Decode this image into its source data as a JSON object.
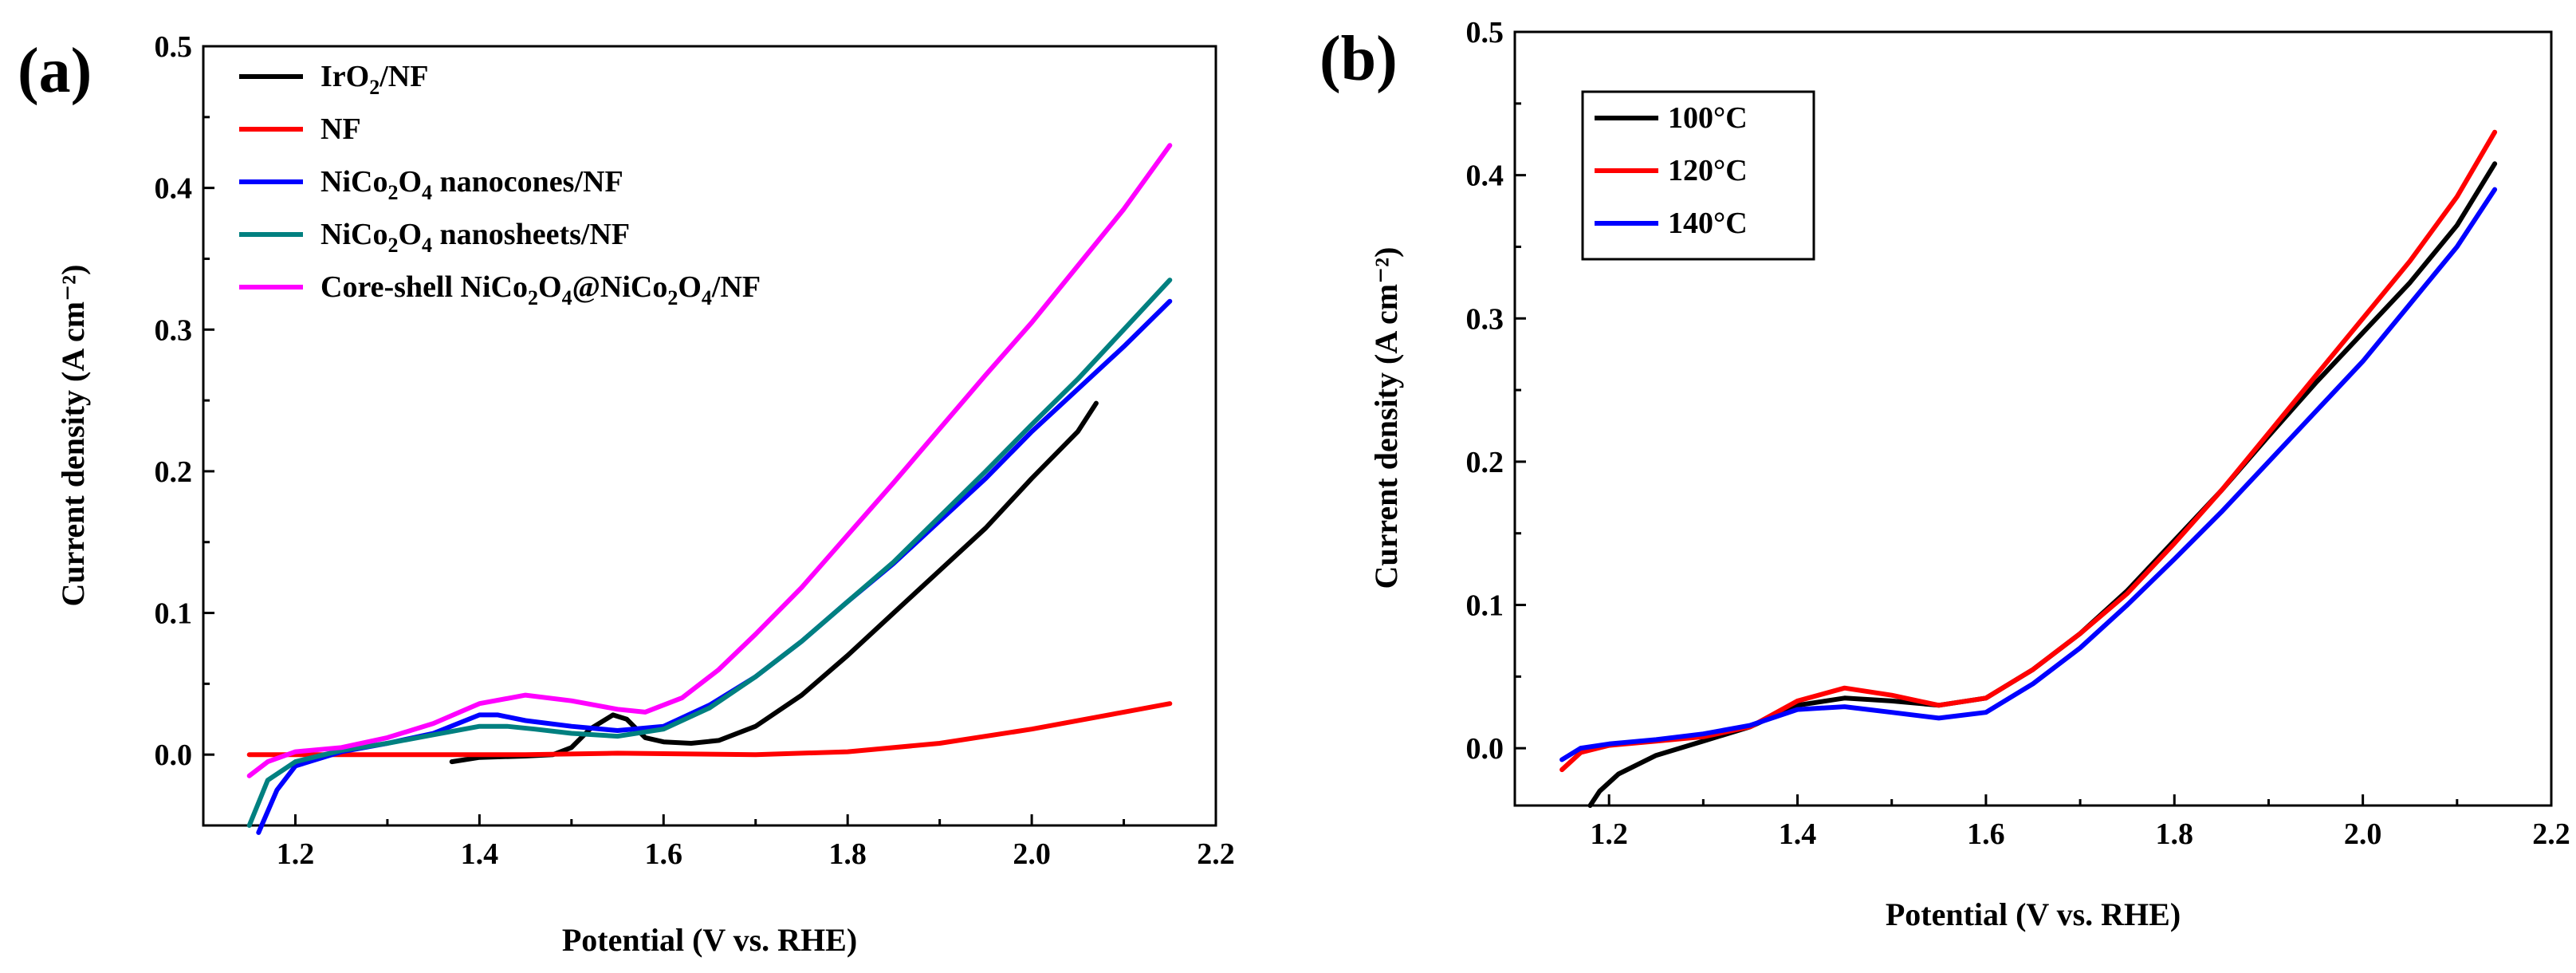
{
  "chart_data": [
    {
      "type": "line",
      "panel_label": "(a)",
      "xlabel": "Potential (V vs. RHE)",
      "ylabel": "Current density (A cm⁻²)",
      "xlim": [
        1.1,
        2.2
      ],
      "ylim": [
        -0.05,
        0.5
      ],
      "xticks": [
        "1.2",
        "1.4",
        "1.6",
        "1.8",
        "2.0",
        "2.2"
      ],
      "yticks": [
        "0.0",
        "0.1",
        "0.2",
        "0.3",
        "0.4",
        "0.5"
      ],
      "legend_position": "top-left",
      "series": [
        {
          "name": "IrO2/NF",
          "legend": {
            "base": "IrO",
            "sub": "2",
            "rest": "/NF"
          },
          "color": "#000000",
          "points": [
            [
              1.37,
              -0.005
            ],
            [
              1.4,
              -0.002
            ],
            [
              1.45,
              -0.001
            ],
            [
              1.48,
              0.0
            ],
            [
              1.5,
              0.005
            ],
            [
              1.52,
              0.018
            ],
            [
              1.545,
              0.028
            ],
            [
              1.56,
              0.025
            ],
            [
              1.58,
              0.012
            ],
            [
              1.6,
              0.009
            ],
            [
              1.63,
              0.008
            ],
            [
              1.66,
              0.01
            ],
            [
              1.7,
              0.02
            ],
            [
              1.75,
              0.042
            ],
            [
              1.8,
              0.07
            ],
            [
              1.85,
              0.1
            ],
            [
              1.9,
              0.13
            ],
            [
              1.95,
              0.16
            ],
            [
              2.0,
              0.195
            ],
            [
              2.05,
              0.228
            ],
            [
              2.07,
              0.248
            ]
          ]
        },
        {
          "name": "NF",
          "legend": {
            "base": "NF",
            "sub": "",
            "rest": ""
          },
          "color": "#ff0000",
          "points": [
            [
              1.15,
              0.0
            ],
            [
              1.3,
              0.0
            ],
            [
              1.45,
              0.0
            ],
            [
              1.55,
              0.001
            ],
            [
              1.7,
              0.0
            ],
            [
              1.8,
              0.002
            ],
            [
              1.9,
              0.008
            ],
            [
              2.0,
              0.018
            ],
            [
              2.1,
              0.03
            ],
            [
              2.15,
              0.036
            ]
          ]
        },
        {
          "name": "NiCo2O4 nanocones/NF",
          "legend": {
            "base": "NiCo",
            "sub": "2",
            "mid": "O",
            "sub2": "4",
            "rest": " nanocones/NF"
          },
          "color": "#0000ff",
          "points": [
            [
              1.16,
              -0.055
            ],
            [
              1.18,
              -0.025
            ],
            [
              1.2,
              -0.008
            ],
            [
              1.25,
              0.002
            ],
            [
              1.3,
              0.008
            ],
            [
              1.35,
              0.015
            ],
            [
              1.4,
              0.028
            ],
            [
              1.42,
              0.028
            ],
            [
              1.45,
              0.024
            ],
            [
              1.5,
              0.02
            ],
            [
              1.55,
              0.017
            ],
            [
              1.6,
              0.02
            ],
            [
              1.65,
              0.035
            ],
            [
              1.7,
              0.055
            ],
            [
              1.75,
              0.08
            ],
            [
              1.8,
              0.108
            ],
            [
              1.85,
              0.135
            ],
            [
              1.9,
              0.165
            ],
            [
              1.95,
              0.195
            ],
            [
              2.0,
              0.228
            ],
            [
              2.05,
              0.258
            ],
            [
              2.1,
              0.288
            ],
            [
              2.15,
              0.32
            ]
          ]
        },
        {
          "name": "NiCo2O4 nanosheets/NF",
          "legend": {
            "base": "NiCo",
            "sub": "2",
            "mid": "O",
            "sub2": "4",
            "rest": " nanosheets/NF"
          },
          "color": "#008080",
          "points": [
            [
              1.15,
              -0.05
            ],
            [
              1.17,
              -0.018
            ],
            [
              1.2,
              -0.005
            ],
            [
              1.25,
              0.003
            ],
            [
              1.3,
              0.008
            ],
            [
              1.35,
              0.014
            ],
            [
              1.4,
              0.02
            ],
            [
              1.43,
              0.02
            ],
            [
              1.46,
              0.018
            ],
            [
              1.5,
              0.015
            ],
            [
              1.55,
              0.013
            ],
            [
              1.6,
              0.018
            ],
            [
              1.65,
              0.033
            ],
            [
              1.7,
              0.055
            ],
            [
              1.75,
              0.08
            ],
            [
              1.8,
              0.108
            ],
            [
              1.85,
              0.136
            ],
            [
              1.9,
              0.168
            ],
            [
              1.95,
              0.2
            ],
            [
              2.0,
              0.233
            ],
            [
              2.05,
              0.265
            ],
            [
              2.1,
              0.3
            ],
            [
              2.15,
              0.335
            ]
          ]
        },
        {
          "name": "Core-shell NiCo2O4@NiCo2O4/NF",
          "legend": {
            "base": "Core-shell NiCo",
            "sub": "2",
            "mid": "O",
            "sub2": "4",
            "mid2": "@NiCo",
            "sub3": "2",
            "mid3": "O",
            "sub4": "4",
            "rest": "/NF"
          },
          "color": "#ff00ff",
          "points": [
            [
              1.15,
              -0.015
            ],
            [
              1.17,
              -0.005
            ],
            [
              1.2,
              0.002
            ],
            [
              1.25,
              0.005
            ],
            [
              1.3,
              0.012
            ],
            [
              1.35,
              0.022
            ],
            [
              1.4,
              0.036
            ],
            [
              1.45,
              0.042
            ],
            [
              1.5,
              0.038
            ],
            [
              1.55,
              0.032
            ],
            [
              1.58,
              0.03
            ],
            [
              1.62,
              0.04
            ],
            [
              1.66,
              0.06
            ],
            [
              1.7,
              0.085
            ],
            [
              1.75,
              0.118
            ],
            [
              1.8,
              0.155
            ],
            [
              1.85,
              0.192
            ],
            [
              1.9,
              0.23
            ],
            [
              1.95,
              0.268
            ],
            [
              2.0,
              0.305
            ],
            [
              2.05,
              0.345
            ],
            [
              2.1,
              0.385
            ],
            [
              2.15,
              0.43
            ]
          ]
        }
      ]
    },
    {
      "type": "line",
      "panel_label": "(b)",
      "xlabel": "Potential (V vs. RHE)",
      "ylabel": "Current density (A cm⁻²)",
      "xlim": [
        1.1,
        2.2
      ],
      "ylim": [
        -0.04,
        0.5
      ],
      "xticks": [
        "1.2",
        "1.4",
        "1.6",
        "1.8",
        "2.0",
        "2.2"
      ],
      "yticks": [
        "0.0",
        "0.1",
        "0.2",
        "0.3",
        "0.4",
        "0.5"
      ],
      "legend_position": "top-left",
      "series": [
        {
          "name": "100°C",
          "legend": {
            "base": "100°C",
            "sub": "",
            "rest": ""
          },
          "color": "#000000",
          "points": [
            [
              1.18,
              -0.04
            ],
            [
              1.19,
              -0.03
            ],
            [
              1.21,
              -0.018
            ],
            [
              1.25,
              -0.005
            ],
            [
              1.3,
              0.005
            ],
            [
              1.35,
              0.015
            ],
            [
              1.4,
              0.03
            ],
            [
              1.45,
              0.035
            ],
            [
              1.5,
              0.033
            ],
            [
              1.55,
              0.03
            ],
            [
              1.6,
              0.035
            ],
            [
              1.65,
              0.055
            ],
            [
              1.7,
              0.08
            ],
            [
              1.75,
              0.11
            ],
            [
              1.8,
              0.145
            ],
            [
              1.85,
              0.18
            ],
            [
              1.9,
              0.218
            ],
            [
              1.95,
              0.255
            ],
            [
              2.0,
              0.29
            ],
            [
              2.05,
              0.325
            ],
            [
              2.1,
              0.365
            ],
            [
              2.14,
              0.408
            ]
          ]
        },
        {
          "name": "120°C",
          "legend": {
            "base": "120°C",
            "sub": "",
            "rest": ""
          },
          "color": "#ff0000",
          "points": [
            [
              1.15,
              -0.015
            ],
            [
              1.17,
              -0.003
            ],
            [
              1.2,
              0.002
            ],
            [
              1.25,
              0.005
            ],
            [
              1.3,
              0.008
            ],
            [
              1.35,
              0.015
            ],
            [
              1.4,
              0.033
            ],
            [
              1.45,
              0.042
            ],
            [
              1.5,
              0.037
            ],
            [
              1.55,
              0.03
            ],
            [
              1.6,
              0.035
            ],
            [
              1.65,
              0.055
            ],
            [
              1.7,
              0.08
            ],
            [
              1.75,
              0.108
            ],
            [
              1.8,
              0.143
            ],
            [
              1.85,
              0.18
            ],
            [
              1.9,
              0.22
            ],
            [
              1.95,
              0.26
            ],
            [
              2.0,
              0.3
            ],
            [
              2.05,
              0.34
            ],
            [
              2.1,
              0.385
            ],
            [
              2.14,
              0.43
            ]
          ]
        },
        {
          "name": "140°C",
          "legend": {
            "base": "140°C",
            "sub": "",
            "rest": ""
          },
          "color": "#0000ff",
          "points": [
            [
              1.15,
              -0.008
            ],
            [
              1.17,
              0.0
            ],
            [
              1.2,
              0.003
            ],
            [
              1.25,
              0.006
            ],
            [
              1.3,
              0.01
            ],
            [
              1.35,
              0.016
            ],
            [
              1.4,
              0.027
            ],
            [
              1.45,
              0.029
            ],
            [
              1.5,
              0.025
            ],
            [
              1.55,
              0.021
            ],
            [
              1.6,
              0.025
            ],
            [
              1.65,
              0.045
            ],
            [
              1.7,
              0.07
            ],
            [
              1.75,
              0.1
            ],
            [
              1.8,
              0.132
            ],
            [
              1.85,
              0.165
            ],
            [
              1.9,
              0.2
            ],
            [
              1.95,
              0.235
            ],
            [
              2.0,
              0.27
            ],
            [
              2.05,
              0.31
            ],
            [
              2.1,
              0.35
            ],
            [
              2.14,
              0.39
            ]
          ]
        }
      ]
    }
  ]
}
